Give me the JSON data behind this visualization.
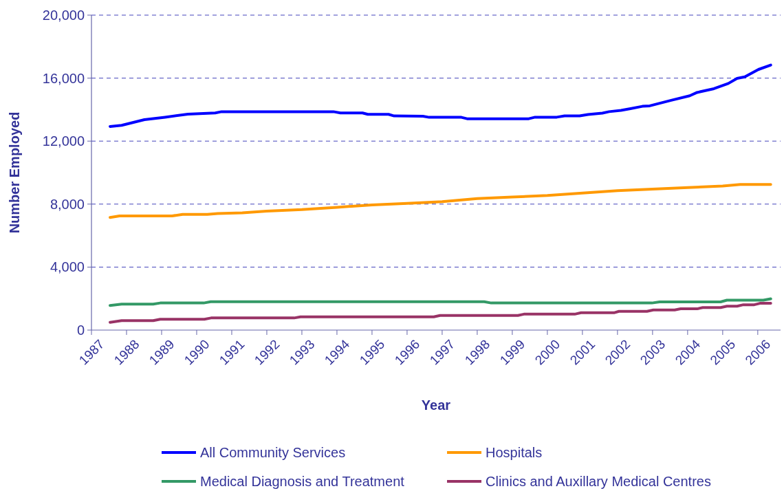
{
  "chart_data": {
    "type": "line",
    "xlabel": "Year",
    "ylabel": "Number Employed",
    "xlim": [
      1987,
      2006.65
    ],
    "xticks": [
      1987,
      1988,
      1989,
      1990,
      1991,
      1992,
      1993,
      1994,
      1995,
      1996,
      1997,
      1998,
      1999,
      2000,
      2001,
      2002,
      2003,
      2004,
      2005,
      2006
    ],
    "ylim": [
      0,
      20000
    ],
    "yticks": [
      0,
      {
        "value": 4000,
        "label": "4,000"
      },
      {
        "value": 8000,
        "label": "8,000"
      },
      {
        "value": 12000,
        "label": "12,000"
      },
      {
        "value": 16000,
        "label": "16,000"
      },
      {
        "value": 20000,
        "label": "20,000"
      }
    ],
    "grid": "y",
    "legend": "bottom",
    "line_style": "solid",
    "series": [
      {
        "name": "All Community Services",
        "color": "#0000ff",
        "x": [
          1987.53,
          1987.86,
          1988.51,
          1989.1,
          1989.75,
          1990.53,
          1990.71,
          1993.9,
          1994.1,
          1994.73,
          1994.88,
          1995.47,
          1995.63,
          1996.45,
          1996.63,
          1997.55,
          1997.71,
          1999.47,
          1999.65,
          2000.27,
          2000.49,
          2000.92,
          2001.16,
          2001.57,
          2001.76,
          2002.1,
          2002.37,
          2002.71,
          2002.92,
          2003.53,
          2004.06,
          2004.27,
          2004.75,
          2005.16,
          2005.41,
          2005.63,
          2006.02,
          2006.37
        ],
        "values": [
          12930,
          13000,
          13360,
          13520,
          13710,
          13790,
          13870,
          13870,
          13790,
          13790,
          13700,
          13700,
          13600,
          13580,
          13510,
          13510,
          13420,
          13420,
          13520,
          13520,
          13600,
          13600,
          13690,
          13780,
          13870,
          13950,
          14060,
          14210,
          14240,
          14590,
          14880,
          15090,
          15330,
          15660,
          15980,
          16080,
          16550,
          16830
        ]
      },
      {
        "name": "Hospitals",
        "color": "#ff9900",
        "x": [
          1987.53,
          1987.8,
          1989.3,
          1989.6,
          1990.3,
          1990.6,
          1991.3,
          1992,
          1993,
          1994,
          1995,
          1996,
          1997,
          1998,
          1999,
          2000,
          2001,
          2002,
          2003,
          2004,
          2005,
          2005.5,
          2006.37
        ],
        "values": [
          7150,
          7250,
          7250,
          7350,
          7350,
          7400,
          7450,
          7550,
          7650,
          7800,
          7950,
          8050,
          8150,
          8350,
          8450,
          8550,
          8700,
          8850,
          8950,
          9050,
          9150,
          9250,
          9250
        ]
      },
      {
        "name": "Medical Diagnosis and Treatment",
        "color": "#339966",
        "x": [
          1987.53,
          1987.86,
          1988.76,
          1988.96,
          1990.2,
          1990.4,
          1998.2,
          1998.4,
          2002.98,
          2003.2,
          2004.94,
          2005.12,
          2006.16,
          2006.37
        ],
        "values": [
          1560,
          1650,
          1650,
          1720,
          1720,
          1800,
          1800,
          1720,
          1720,
          1790,
          1790,
          1900,
          1900,
          1990
        ]
      },
      {
        "name": "Clinics and Auxillary Medical Centres",
        "color": "#993366",
        "x": [
          1987.53,
          1987.86,
          1988.76,
          1988.96,
          1990.22,
          1990.41,
          1992.78,
          1992.96,
          1996.76,
          1996.94,
          1999.16,
          1999.33,
          2000.78,
          2000.96,
          2001.9,
          2002.04,
          2002.84,
          2003.02,
          2003.63,
          2003.8,
          2004.27,
          2004.43,
          2004.94,
          2005.12,
          2005.41,
          2005.59,
          2005.9,
          2006.06,
          2006.37
        ],
        "values": [
          490,
          600,
          600,
          690,
          690,
          770,
          770,
          840,
          840,
          930,
          930,
          1010,
          1010,
          1100,
          1100,
          1190,
          1190,
          1280,
          1280,
          1350,
          1350,
          1430,
          1430,
          1520,
          1520,
          1610,
          1610,
          1700,
          1700
        ]
      }
    ]
  }
}
